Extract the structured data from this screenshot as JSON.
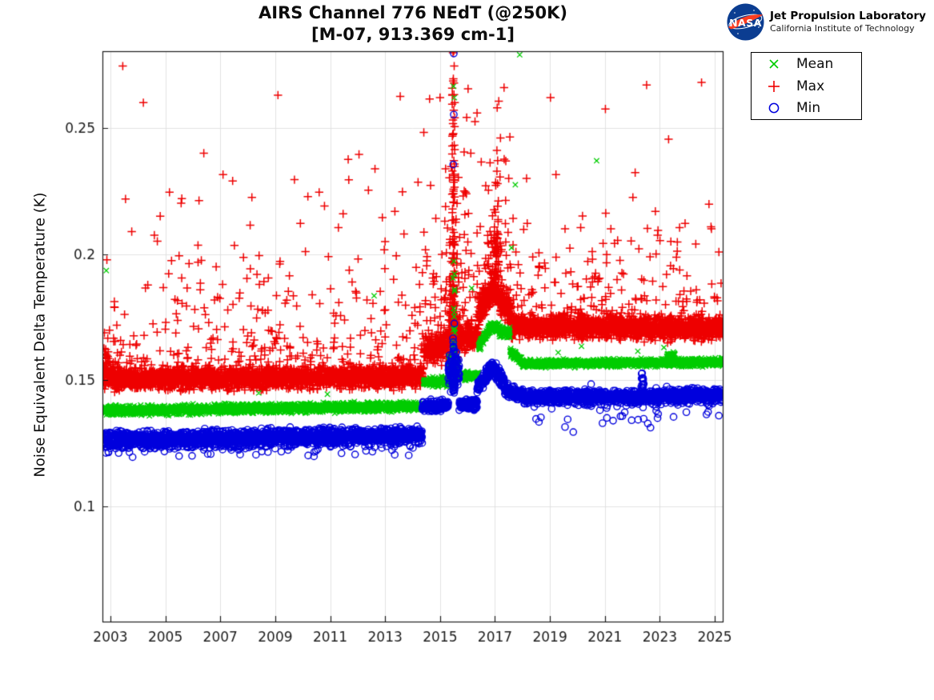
{
  "header": {
    "title_line1": "AIRS Channel 776 NEdT (@250K)",
    "title_line2": "[M-07, 913.369 cm-1]",
    "logo": {
      "org": "NASA",
      "name": "Jet Propulsion Laboratory",
      "sub": "California Institute of Technology",
      "meatball_blue": "#0b3d91",
      "swoosh_red": "#fc3d21"
    }
  },
  "legend": {
    "position": "outside-top-right",
    "items": [
      {
        "label": "Mean",
        "marker": "x",
        "color": "#00cc00"
      },
      {
        "label": "Max",
        "marker": "plus",
        "color": "#ee0000"
      },
      {
        "label": "Min",
        "marker": "circle",
        "color": "#0000dd"
      }
    ]
  },
  "chart_data": {
    "type": "scatter",
    "title": "AIRS Channel 776 NEdT (@250K) [M-07, 913.369 cm-1]",
    "xlabel": "",
    "ylabel": "Noise Equivalent Delta Temperature (K)",
    "xlim": [
      2002.71,
      2025.29
    ],
    "ylim": [
      0.0544,
      0.2804
    ],
    "xticks": [
      2003,
      2005,
      2007,
      2009,
      2011,
      2013,
      2015,
      2017,
      2019,
      2021,
      2023,
      2025
    ],
    "yticks": [
      0.1,
      0.15,
      0.2,
      0.25
    ],
    "ytick_labels": [
      "0.1",
      "0.15",
      "0.2",
      "0.25"
    ],
    "grid": true,
    "style": {
      "grid_color": "#e2e2e2",
      "axis_color": "#1a1a1a",
      "tick_label_color": "#1c1c1c",
      "tick_font_px": 17
    },
    "draw_order": [
      1,
      0,
      2
    ],
    "series": [
      {
        "name": "Mean",
        "marker": "x",
        "color": "#00cc00",
        "seed": 202,
        "marker_size": 3.2,
        "line_width": 1.3,
        "segments": [
          {
            "from": 2002.75,
            "to": 2014.4,
            "step": 0.005,
            "v0": 0.138,
            "v1": 0.1397,
            "jitter": 0.0017
          },
          {
            "from": 2014.4,
            "to": 2015.3,
            "step": 0.005,
            "v0": 0.1492,
            "v1": 0.1495,
            "jitter": 0.0017
          },
          {
            "from": 2015.3,
            "to": 2015.66,
            "step": 0.005,
            "v0": 0.1565,
            "v1": 0.156,
            "jitter": 0.004
          },
          {
            "from": 2015.66,
            "to": 2016.4,
            "step": 0.005,
            "v0": 0.1518,
            "v1": 0.152,
            "jitter": 0.0017
          },
          {
            "from": 2016.4,
            "to": 2016.9,
            "step": 0.005,
            "v0": 0.1635,
            "v1": 0.1715,
            "jitter": 0.0022
          },
          {
            "from": 2016.9,
            "to": 2017.55,
            "step": 0.005,
            "v0": 0.1715,
            "v1": 0.168,
            "jitter": 0.0022
          },
          {
            "from": 2017.55,
            "to": 2018.0,
            "step": 0.005,
            "v0": 0.1615,
            "v1": 0.1575,
            "jitter": 0.0016
          },
          {
            "from": 2018.0,
            "to": 2025.29,
            "step": 0.005,
            "v0": 0.1566,
            "v1": 0.1572,
            "jitter": 0.0014
          },
          {
            "from": 2023.25,
            "to": 2023.55,
            "step": 0.006,
            "v0": 0.1597,
            "v1": 0.16,
            "jitter": 0.0012
          }
        ],
        "columns": [
          {
            "x": 2015.5,
            "xspread": 0.045,
            "count": 22,
            "base": 0.16,
            "decay": 0.014,
            "max": 0.205
          }
        ],
        "outliers": [
          [
            2002.85,
            0.1935
          ],
          [
            2012.6,
            0.1835
          ],
          [
            2015.49,
            0.2665
          ],
          [
            2015.52,
            0.262
          ],
          [
            2015.47,
            0.1905
          ],
          [
            2015.53,
            0.186
          ],
          [
            2016.15,
            0.1865
          ],
          [
            2017.9,
            0.279
          ],
          [
            2017.74,
            0.2275
          ],
          [
            2017.6,
            0.2025
          ],
          [
            2020.7,
            0.237
          ],
          [
            2020.15,
            0.1635
          ],
          [
            2022.2,
            0.1615
          ],
          [
            2019.3,
            0.161
          ],
          [
            2023.15,
            0.163
          ],
          [
            2008.4,
            0.145
          ],
          [
            2010.9,
            0.1445
          ]
        ]
      },
      {
        "name": "Max",
        "marker": "plus",
        "color": "#ee0000",
        "seed": 101,
        "marker_size": 5.2,
        "line_width": 1.5,
        "segments": [
          {
            "from": 2002.75,
            "to": 2003.35,
            "step": 0.005,
            "v0": 0.1525,
            "v1": 0.1515,
            "jitter": 0.0052,
            "tail": {
              "count": 25,
              "scale": 0.012,
              "max": 0.2,
              "dir": 1
            }
          },
          {
            "from": 2003.35,
            "to": 2014.4,
            "step": 0.005,
            "v0": 0.1505,
            "v1": 0.1515,
            "jitter": 0.004,
            "tail": {
              "count": 290,
              "scale": 0.021,
              "max": 0.246,
              "dir": 1
            }
          },
          {
            "from": 2014.4,
            "to": 2015.3,
            "step": 0.005,
            "v0": 0.1615,
            "v1": 0.164,
            "jitter": 0.0055,
            "tail": {
              "count": 40,
              "scale": 0.026,
              "max": 0.263,
              "dir": 1
            }
          },
          {
            "from": 2015.3,
            "to": 2015.66,
            "step": 0.005,
            "v0": 0.168,
            "v1": 0.168,
            "jitter": 0.006
          },
          {
            "from": 2015.66,
            "to": 2016.4,
            "step": 0.005,
            "v0": 0.167,
            "v1": 0.1672,
            "jitter": 0.0048,
            "tail": {
              "count": 45,
              "scale": 0.024,
              "max": 0.266,
              "dir": 1
            }
          },
          {
            "from": 2016.4,
            "to": 2016.9,
            "step": 0.004,
            "v0": 0.176,
            "v1": 0.187,
            "jitter": 0.0058,
            "tail": {
              "count": 30,
              "scale": 0.018,
              "max": 0.24,
              "dir": 1
            }
          },
          {
            "from": 2016.9,
            "to": 2017.6,
            "step": 0.004,
            "v0": 0.187,
            "v1": 0.177,
            "jitter": 0.0058,
            "tail": {
              "count": 40,
              "scale": 0.02,
              "max": 0.255,
              "dir": 1
            }
          },
          {
            "from": 2017.6,
            "to": 2025.29,
            "step": 0.005,
            "v0": 0.1715,
            "v1": 0.1705,
            "jitter": 0.0042,
            "tail": {
              "count": 165,
              "scale": 0.017,
              "max": 0.236,
              "dir": 1
            }
          }
        ],
        "columns": [
          {
            "x": 2015.49,
            "xspread": 0.05,
            "count": 150,
            "base": 0.158,
            "decay": 0.038,
            "max": 0.281
          },
          {
            "x": 2015.37,
            "xspread": 0.035,
            "count": 40,
            "base": 0.158,
            "decay": 0.022,
            "max": 0.242
          },
          {
            "x": 2015.6,
            "xspread": 0.035,
            "count": 40,
            "base": 0.158,
            "decay": 0.02,
            "max": 0.225
          },
          {
            "x": 2017.05,
            "xspread": 0.09,
            "count": 50,
            "base": 0.19,
            "decay": 0.016,
            "max": 0.262
          }
        ],
        "outliers": [
          [
            2003.45,
            0.2745
          ],
          [
            2004.2,
            0.26
          ],
          [
            2009.1,
            0.263
          ],
          [
            2013.55,
            0.2625
          ],
          [
            2006.4,
            0.24
          ],
          [
            2012.05,
            0.2395
          ],
          [
            2007.1,
            0.2315
          ],
          [
            2009.7,
            0.2295
          ],
          [
            2007.45,
            0.229
          ],
          [
            2005.15,
            0.2245
          ],
          [
            2008.15,
            0.2225
          ],
          [
            2010.6,
            0.2245
          ],
          [
            2005.6,
            0.222
          ],
          [
            2011.3,
            0.2105
          ],
          [
            2012.9,
            0.2145
          ],
          [
            2004.6,
            0.2075
          ],
          [
            2014.2,
            0.2285
          ],
          [
            2013.0,
            0.205
          ],
          [
            2010.1,
            0.201
          ],
          [
            2006.85,
            0.195
          ],
          [
            2015.0,
            0.262
          ],
          [
            2014.62,
            0.2615
          ],
          [
            2016.02,
            0.2655
          ],
          [
            2016.12,
            0.24
          ],
          [
            2015.88,
            0.225
          ],
          [
            2015.5,
            0.2805
          ],
          [
            2015.515,
            0.2745
          ],
          [
            2015.485,
            0.2695
          ],
          [
            2015.5,
            0.257
          ],
          [
            2015.53,
            0.2505
          ],
          [
            2017.33,
            0.266
          ],
          [
            2017.08,
            0.258
          ],
          [
            2017.2,
            0.246
          ],
          [
            2017.5,
            0.23
          ],
          [
            2018.15,
            0.23
          ],
          [
            2019.02,
            0.262
          ],
          [
            2019.22,
            0.2315
          ],
          [
            2019.55,
            0.21
          ],
          [
            2020.12,
            0.2105
          ],
          [
            2020.55,
            0.198
          ],
          [
            2021.02,
            0.2575
          ],
          [
            2021.22,
            0.21
          ],
          [
            2021.55,
            0.1975
          ],
          [
            2022.02,
            0.2225
          ],
          [
            2022.52,
            0.267
          ],
          [
            2022.92,
            0.2075
          ],
          [
            2023.32,
            0.2455
          ],
          [
            2023.72,
            0.2105
          ],
          [
            2024.52,
            0.268
          ],
          [
            2024.88,
            0.21
          ],
          [
            2025.1,
            0.1815
          ]
        ]
      },
      {
        "name": "Min",
        "marker": "circle",
        "color": "#0000dd",
        "seed": 303,
        "marker_size": 4.1,
        "line_width": 1.4,
        "segments": [
          {
            "from": 2002.75,
            "to": 2014.35,
            "step": 0.0055,
            "v0": 0.1262,
            "v1": 0.1282,
            "jitter": 0.003,
            "tail": {
              "count": 70,
              "scale": 0.0028,
              "max": 0.1192,
              "dir": -1
            }
          },
          {
            "from": 2014.35,
            "to": 2015.3,
            "step": 0.0055,
            "v0": 0.1398,
            "v1": 0.14,
            "jitter": 0.0021
          },
          {
            "from": 2015.3,
            "to": 2015.7,
            "step": 0.005,
            "v0": 0.154,
            "v1": 0.1545,
            "jitter": 0.0062
          },
          {
            "from": 2015.7,
            "to": 2016.35,
            "step": 0.0055,
            "v0": 0.1405,
            "v1": 0.1405,
            "jitter": 0.002
          },
          {
            "from": 2016.35,
            "to": 2016.9,
            "step": 0.005,
            "v0": 0.147,
            "v1": 0.1555,
            "jitter": 0.0028
          },
          {
            "from": 2016.9,
            "to": 2017.35,
            "step": 0.005,
            "v0": 0.1555,
            "v1": 0.149,
            "jitter": 0.0028
          },
          {
            "from": 2017.35,
            "to": 2018.05,
            "step": 0.0055,
            "v0": 0.1462,
            "v1": 0.1438,
            "jitter": 0.0024
          },
          {
            "from": 2018.05,
            "to": 2025.29,
            "step": 0.0055,
            "v0": 0.1432,
            "v1": 0.144,
            "jitter": 0.0026,
            "tail": {
              "count": 42,
              "scale": 0.0035,
              "max": 0.1295,
              "dir": -1
            }
          }
        ],
        "columns": [
          {
            "x": 2015.5,
            "xspread": 0.045,
            "count": 40,
            "base": 0.145,
            "decay": 0.0095,
            "max": 0.17
          },
          {
            "x": 2022.37,
            "xspread": 0.05,
            "count": 16,
            "base": 0.1468,
            "decay": 0.004,
            "max": 0.1548
          }
        ],
        "outliers": [
          [
            2015.5,
            0.2795
          ],
          [
            2015.5,
            0.2553
          ],
          [
            2015.48,
            0.2355
          ],
          [
            2015.52,
            0.1725
          ],
          [
            2019.85,
            0.1295
          ],
          [
            2019.55,
            0.1315
          ],
          [
            2018.6,
            0.1335
          ],
          [
            2021.3,
            0.134
          ],
          [
            2024.7,
            0.1365
          ],
          [
            2025.15,
            0.136
          ],
          [
            2020.5,
            0.1485
          ],
          [
            2013.35,
            0.1205
          ],
          [
            2005.5,
            0.12
          ],
          [
            2008.3,
            0.1205
          ],
          [
            2003.3,
            0.1212
          ],
          [
            2010.2,
            0.1202
          ],
          [
            2023.5,
            0.1355
          ]
        ]
      }
    ]
  }
}
